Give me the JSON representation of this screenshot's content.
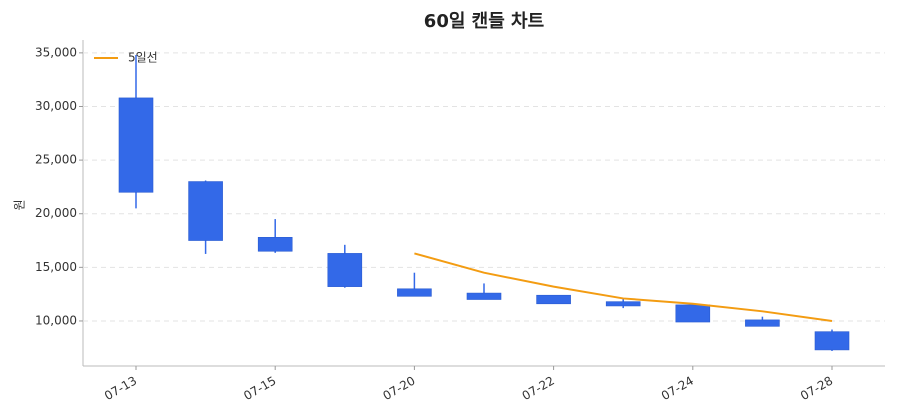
{
  "chart_data": {
    "type": "candlestick",
    "title": "60일 캔들 차트",
    "y_label": "원",
    "categories": [
      "07-13",
      null,
      "07-15",
      null,
      "07-20",
      null,
      "07-22",
      null,
      "07-24",
      null,
      "07-28"
    ],
    "open": [
      30800,
      23000,
      17800,
      16300,
      13000,
      12600,
      12400,
      11800,
      11500,
      10100,
      9000
    ],
    "high": [
      34800,
      23100,
      19500,
      17100,
      14500,
      13500,
      12400,
      12100,
      11500,
      10400,
      9200
    ],
    "low": [
      20500,
      16250,
      16350,
      13100,
      12300,
      12000,
      11600,
      11200,
      9900,
      9500,
      7200
    ],
    "close": [
      22000,
      17500,
      16500,
      13200,
      12300,
      12000,
      11600,
      11400,
      9900,
      9500,
      7300
    ],
    "candle_color": "#3369e8",
    "series": [
      {
        "name": "5일선",
        "color": "#f39c12",
        "values": [
          null,
          null,
          null,
          null,
          16300,
          14500,
          13200,
          12100,
          11600,
          10900,
          10000
        ]
      }
    ],
    "ylim": [
      5800,
      36200
    ],
    "yticks": [
      {
        "value": 10000,
        "label": "10,000"
      },
      {
        "value": 15000,
        "label": "15,000"
      },
      {
        "value": 20000,
        "label": "20,000"
      },
      {
        "value": 25000,
        "label": "25,000"
      },
      {
        "value": 30000,
        "label": "30,000"
      },
      {
        "value": 35000,
        "label": "35,000"
      }
    ],
    "grid": true,
    "legend": "upper-left"
  }
}
